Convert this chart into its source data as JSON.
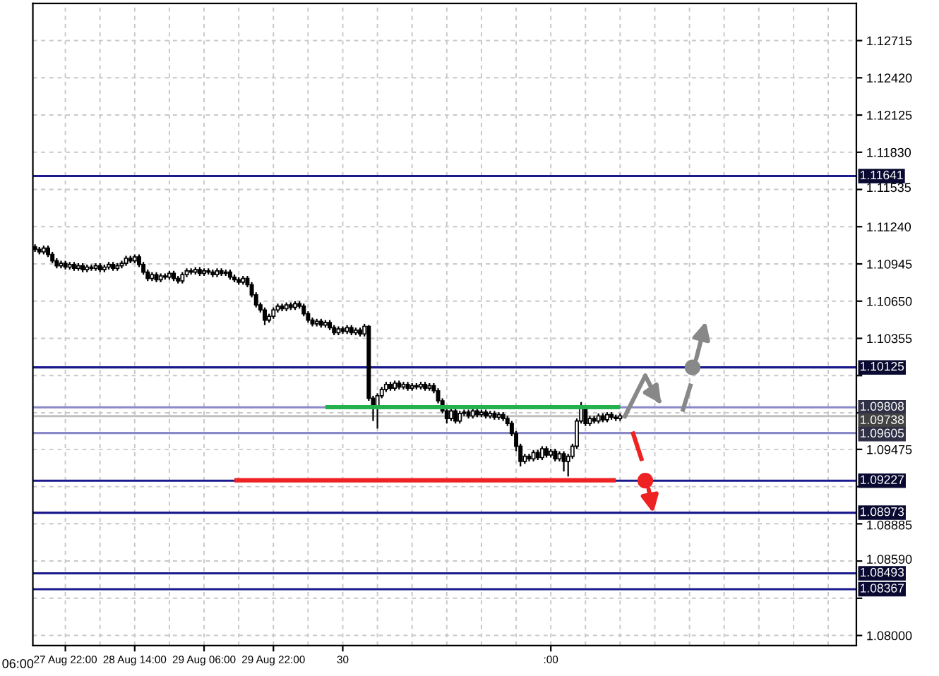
{
  "chart_data": {
    "type": "candlestick",
    "color": "#000000",
    "categories": [
      null,
      null,
      null,
      null,
      null,
      null,
      null,
      "27 Aug 22:00",
      null,
      null,
      null,
      null,
      null,
      null,
      null,
      null,
      null,
      null,
      null,
      null,
      null,
      null,
      null,
      "28 Aug 14:00",
      null,
      null,
      null,
      null,
      null,
      null,
      null,
      null,
      null,
      null,
      null,
      null,
      null,
      null,
      null,
      "29 Aug 06:00",
      null,
      null,
      null,
      null,
      null,
      null,
      null,
      null,
      null,
      null,
      null,
      null,
      null,
      null,
      null,
      "29 Aug 22:00",
      null,
      null,
      null,
      null,
      null,
      null,
      null,
      null,
      null,
      null,
      null,
      null,
      null,
      null,
      null,
      "30",
      null,
      null,
      null,
      null,
      null,
      null,
      null,
      null,
      null,
      null,
      null,
      null,
      null,
      null,
      null,
      null,
      null,
      null,
      null,
      null,
      null,
      null,
      null,
      null,
      null,
      null,
      null,
      null,
      null,
      null,
      null,
      null,
      null,
      null,
      null,
      null,
      null,
      null,
      null,
      null,
      null,
      null,
      null,
      null,
      null,
      null,
      null,
      ":00",
      null,
      null,
      null,
      null,
      null,
      null,
      null,
      null,
      null,
      null,
      null,
      null,
      null,
      null,
      null,
      null,
      null,
      null,
      null,
      null,
      null,
      null,
      null,
      null,
      null,
      null,
      null,
      null,
      null,
      null,
      null,
      null,
      null,
      null,
      null,
      null,
      null,
      null,
      null,
      null,
      null,
      null,
      null,
      null,
      null,
      null,
      null,
      null,
      null,
      null,
      null,
      null,
      null,
      null,
      null,
      null,
      null,
      null,
      null,
      null,
      null,
      null,
      null,
      null,
      null,
      null,
      null,
      null,
      null,
      null
    ],
    "ohlc": [
      [
        1.1108,
        1.111,
        1.1104,
        1.1106
      ],
      [
        1.1106,
        1.1108,
        1.1102,
        1.1104
      ],
      [
        1.1104,
        1.1109,
        1.1102,
        1.1107
      ],
      [
        1.1107,
        1.1109,
        1.11,
        1.1102
      ],
      [
        1.1102,
        1.1104,
        1.1095,
        1.1097
      ],
      [
        1.1097,
        1.1099,
        1.1091,
        1.1093
      ],
      [
        1.1093,
        1.1097,
        1.1091,
        1.1095
      ],
      [
        1.1095,
        1.1097,
        1.109,
        1.1092
      ],
      [
        1.1092,
        1.1096,
        1.109,
        1.1094
      ],
      [
        1.1094,
        1.1096,
        1.1089,
        1.1091
      ],
      [
        1.1091,
        1.1095,
        1.1089,
        1.1093
      ],
      [
        1.1093,
        1.1095,
        1.1088,
        1.109
      ],
      [
        1.109,
        1.1094,
        1.1088,
        1.1092
      ],
      [
        1.1092,
        1.1094,
        1.1089,
        1.1091
      ],
      [
        1.1091,
        1.1095,
        1.1089,
        1.1093
      ],
      [
        1.1093,
        1.1095,
        1.1088,
        1.109
      ],
      [
        1.109,
        1.1094,
        1.1088,
        1.1092
      ],
      [
        1.1092,
        1.1096,
        1.109,
        1.1094
      ],
      [
        1.1094,
        1.1096,
        1.1089,
        1.1091
      ],
      [
        1.1091,
        1.1095,
        1.1089,
        1.1093
      ],
      [
        1.1093,
        1.1097,
        1.1091,
        1.1095
      ],
      [
        1.1095,
        1.1101,
        1.1093,
        1.1099
      ],
      [
        1.1099,
        1.1101,
        1.1095,
        1.1097
      ],
      [
        1.1097,
        1.1102,
        1.1095,
        1.11
      ],
      [
        1.11,
        1.1102,
        1.1092,
        1.1094
      ],
      [
        1.1094,
        1.1096,
        1.1086,
        1.1088
      ],
      [
        1.1088,
        1.109,
        1.1081,
        1.1083
      ],
      [
        1.1083,
        1.1088,
        1.1081,
        1.1086
      ],
      [
        1.1086,
        1.1088,
        1.108,
        1.1082
      ],
      [
        1.1082,
        1.1087,
        1.108,
        1.1085
      ],
      [
        1.1085,
        1.1087,
        1.1082,
        1.1084
      ],
      [
        1.1084,
        1.1089,
        1.1082,
        1.1087
      ],
      [
        1.1087,
        1.1089,
        1.1081,
        1.1083
      ],
      [
        1.1083,
        1.1085,
        1.1079,
        1.1081
      ],
      [
        1.1081,
        1.1088,
        1.1079,
        1.1086
      ],
      [
        1.1086,
        1.1091,
        1.1084,
        1.1089
      ],
      [
        1.1089,
        1.1091,
        1.1086,
        1.1088
      ],
      [
        1.1088,
        1.1092,
        1.1086,
        1.109
      ],
      [
        1.109,
        1.1092,
        1.1085,
        1.1087
      ],
      [
        1.1087,
        1.1091,
        1.1085,
        1.1089
      ],
      [
        1.1089,
        1.1091,
        1.1086,
        1.1088
      ],
      [
        1.1088,
        1.109,
        1.1084,
        1.1086
      ],
      [
        1.1086,
        1.1091,
        1.1084,
        1.1089
      ],
      [
        1.1089,
        1.1091,
        1.1085,
        1.1087
      ],
      [
        1.1087,
        1.109,
        1.1085,
        1.1088
      ],
      [
        1.1088,
        1.109,
        1.1082,
        1.1084
      ],
      [
        1.1084,
        1.1086,
        1.108,
        1.1082
      ],
      [
        1.1082,
        1.1084,
        1.1078,
        1.108
      ],
      [
        1.108,
        1.1085,
        1.1078,
        1.1083
      ],
      [
        1.1083,
        1.1085,
        1.1076,
        1.1078
      ],
      [
        1.1078,
        1.108,
        1.1068,
        1.107
      ],
      [
        1.107,
        1.1072,
        1.106,
        1.1062
      ],
      [
        1.1062,
        1.1064,
        1.1056,
        1.1058
      ],
      [
        1.1058,
        1.106,
        1.1046,
        1.105
      ],
      [
        1.105,
        1.1055,
        1.1048,
        1.1053
      ],
      [
        1.1053,
        1.106,
        1.1051,
        1.1058
      ],
      [
        1.1058,
        1.1063,
        1.1056,
        1.1061
      ],
      [
        1.1061,
        1.1063,
        1.1057,
        1.1059
      ],
      [
        1.1059,
        1.1064,
        1.1057,
        1.1062
      ],
      [
        1.1062,
        1.1064,
        1.1058,
        1.106
      ],
      [
        1.106,
        1.1065,
        1.1058,
        1.1063
      ],
      [
        1.1063,
        1.1065,
        1.1059,
        1.1061
      ],
      [
        1.1061,
        1.1063,
        1.1053,
        1.1055
      ],
      [
        1.1055,
        1.1057,
        1.1048,
        1.105
      ],
      [
        1.105,
        1.1052,
        1.1045,
        1.1047
      ],
      [
        1.1047,
        1.1051,
        1.1045,
        1.1049
      ],
      [
        1.1049,
        1.1051,
        1.1044,
        1.1046
      ],
      [
        1.1046,
        1.105,
        1.1044,
        1.1048
      ],
      [
        1.1048,
        1.105,
        1.1042,
        1.1044
      ],
      [
        1.1044,
        1.1046,
        1.1038,
        1.104
      ],
      [
        1.104,
        1.1045,
        1.1038,
        1.1043
      ],
      [
        1.1043,
        1.1045,
        1.1039,
        1.1041
      ],
      [
        1.1041,
        1.1046,
        1.1039,
        1.1044
      ],
      [
        1.1044,
        1.1046,
        1.1038,
        1.104
      ],
      [
        1.104,
        1.1044,
        1.1038,
        1.1042
      ],
      [
        1.1042,
        1.1044,
        1.1037,
        1.1039
      ],
      [
        1.1039,
        1.1047,
        1.1037,
        1.1045
      ],
      [
        1.1045,
        1.1046,
        1.0986,
        1.0988
      ],
      [
        1.0988,
        1.099,
        1.097,
        1.0982
      ],
      [
        1.0982,
        1.0992,
        1.0964,
        1.099
      ],
      [
        1.099,
        1.0997,
        1.0988,
        1.0995
      ],
      [
        1.0995,
        1.1001,
        1.0993,
        1.0999
      ],
      [
        1.0999,
        1.1001,
        1.0994,
        1.0996
      ],
      [
        1.0996,
        1.1002,
        1.0994,
        1.1
      ],
      [
        1.1,
        1.1002,
        1.0995,
        1.0997
      ],
      [
        1.0997,
        1.1001,
        1.0995,
        1.0999
      ],
      [
        1.0999,
        1.1001,
        1.0994,
        1.0996
      ],
      [
        1.0996,
        1.1,
        1.0994,
        1.0998
      ],
      [
        1.0998,
        1.1,
        1.0995,
        1.0997
      ],
      [
        1.0997,
        1.1001,
        1.0995,
        1.0999
      ],
      [
        1.0999,
        1.1001,
        1.0994,
        1.0996
      ],
      [
        1.0996,
        1.1,
        1.0994,
        1.0998
      ],
      [
        1.0998,
        1.1,
        1.0992,
        1.0994
      ],
      [
        1.0994,
        1.0996,
        1.0984,
        1.0986
      ],
      [
        1.0986,
        1.0988,
        1.0976,
        1.0978
      ],
      [
        1.0978,
        1.098,
        1.0968,
        1.0972
      ],
      [
        1.0972,
        1.098,
        1.097,
        1.0978
      ],
      [
        1.0978,
        1.098,
        1.0968,
        1.097
      ],
      [
        1.097,
        1.0978,
        1.0968,
        1.0976
      ],
      [
        1.0976,
        1.0979,
        1.0974,
        1.0977
      ],
      [
        1.0977,
        1.0979,
        1.0972,
        1.0974
      ],
      [
        1.0974,
        1.098,
        1.0972,
        1.0978
      ],
      [
        1.0978,
        1.098,
        1.0973,
        1.0975
      ],
      [
        1.0975,
        1.0979,
        1.0973,
        1.0977
      ],
      [
        1.0977,
        1.0979,
        1.0972,
        1.0974
      ],
      [
        1.0974,
        1.0978,
        1.0972,
        1.0976
      ],
      [
        1.0976,
        1.0978,
        1.0971,
        1.0973
      ],
      [
        1.0973,
        1.0977,
        1.0971,
        1.0975
      ],
      [
        1.0975,
        1.0977,
        1.097,
        1.0972
      ],
      [
        1.0972,
        1.0974,
        1.0966,
        1.0968
      ],
      [
        1.0968,
        1.097,
        1.0958,
        1.096
      ],
      [
        1.096,
        1.0962,
        1.0946,
        1.095
      ],
      [
        1.095,
        1.0952,
        1.0934,
        1.0938
      ],
      [
        1.0938,
        1.0944,
        1.0936,
        1.0942
      ],
      [
        1.0942,
        1.0944,
        1.0938,
        1.094
      ],
      [
        1.094,
        1.0947,
        1.0938,
        1.0945
      ],
      [
        1.0945,
        1.0947,
        1.0939,
        1.0941
      ],
      [
        1.0941,
        1.095,
        1.0939,
        1.0948
      ],
      [
        1.0948,
        1.095,
        1.0941,
        1.0943
      ],
      [
        1.0943,
        1.0948,
        1.0941,
        1.0946
      ],
      [
        1.0946,
        1.0948,
        1.0938,
        1.094
      ],
      [
        1.094,
        1.0946,
        1.0938,
        1.0944
      ],
      [
        1.0944,
        1.0946,
        1.093,
        1.0938
      ],
      [
        1.0938,
        1.0944,
        1.0926,
        1.0942
      ],
      [
        1.0942,
        1.0952,
        1.094,
        1.095
      ],
      [
        1.095,
        1.0972,
        1.0948,
        1.097
      ],
      [
        1.097,
        1.0985,
        1.0968,
        1.098
      ],
      [
        1.098,
        1.0982,
        1.0966,
        1.0968
      ],
      [
        1.0968,
        1.0974,
        1.0966,
        1.0972
      ],
      [
        1.0972,
        1.0974,
        1.0968,
        1.097
      ],
      [
        1.097,
        1.0976,
        1.0968,
        1.0974
      ],
      [
        1.0974,
        1.0976,
        1.0969,
        1.0971
      ],
      [
        1.0971,
        1.0977,
        1.0969,
        1.0975
      ],
      [
        1.0975,
        1.0977,
        1.0971,
        1.0973
      ],
      [
        1.0973,
        1.0975,
        1.097,
        1.0972
      ],
      [
        1.0972,
        1.0976,
        1.097,
        1.0974
      ],
      null,
      null,
      null,
      null,
      null,
      null,
      null,
      null,
      null,
      null,
      null,
      null,
      null,
      null,
      null,
      null,
      null,
      null,
      null,
      null,
      null,
      null,
      null,
      null,
      null,
      null,
      null,
      null,
      null,
      null,
      null,
      null,
      null,
      null,
      null,
      null,
      null,
      null,
      null,
      null,
      null,
      null,
      null,
      null,
      null,
      null,
      null,
      null,
      null,
      null,
      null,
      null,
      null,
      null
    ],
    "series": [
      {
        "type": "line",
        "color": "#22b14c",
        "values": [
          null,
          null,
          null,
          null,
          null,
          null,
          null,
          null,
          null,
          null,
          null,
          null,
          null,
          null,
          null,
          null,
          null,
          null,
          null,
          null,
          null,
          null,
          null,
          null,
          null,
          null,
          null,
          null,
          null,
          null,
          null,
          null,
          null,
          null,
          null,
          null,
          null,
          null,
          null,
          null,
          null,
          null,
          null,
          null,
          null,
          null,
          null,
          null,
          null,
          null,
          null,
          null,
          null,
          null,
          null,
          null,
          null,
          null,
          null,
          null,
          null,
          null,
          null,
          null,
          null,
          null,
          null,
          1.0981,
          1.0981,
          1.0981,
          1.0981,
          1.0981,
          1.0981,
          1.0981,
          1.0981,
          1.0981,
          1.0981,
          1.0981,
          1.0981,
          1.0981,
          1.0981,
          1.0981,
          1.0981,
          1.0981,
          1.0981,
          1.0981,
          1.0981,
          1.0981,
          1.0981,
          1.0981,
          1.0981,
          1.0981,
          1.0981,
          1.0981,
          1.0981,
          1.0981,
          1.0981,
          1.0981,
          1.0981,
          1.0981,
          1.0981,
          1.0981,
          1.0981,
          1.0981,
          1.0981,
          1.0981,
          1.0981,
          1.0981,
          1.0981,
          1.0981,
          1.0981,
          1.0981,
          1.0981,
          1.0981,
          1.0981,
          1.0981,
          1.0981,
          1.0981,
          1.0981,
          1.0981,
          1.0981,
          1.0981,
          1.0981,
          1.0981,
          1.0981,
          1.0981,
          1.0981,
          1.0981,
          1.0981,
          1.0981,
          1.0981,
          1.0981,
          1.0981,
          1.0981,
          1.0981,
          1.0981,
          null,
          null,
          null,
          null,
          null,
          null,
          null,
          null,
          null,
          null,
          null,
          null,
          null,
          null,
          null,
          null,
          null,
          null,
          null,
          null,
          null,
          null,
          null,
          null,
          null,
          null,
          null,
          null,
          null,
          null,
          null,
          null,
          null,
          null,
          null,
          null,
          null,
          null,
          null,
          null,
          null,
          null,
          null,
          null,
          null,
          null,
          null,
          null,
          null,
          null,
          null,
          null,
          null,
          null
        ]
      },
      {
        "type": "line",
        "color": "#ee2222",
        "values": [
          null,
          null,
          null,
          null,
          null,
          null,
          null,
          null,
          null,
          null,
          null,
          null,
          null,
          null,
          null,
          null,
          null,
          null,
          null,
          null,
          null,
          null,
          null,
          null,
          null,
          null,
          null,
          null,
          null,
          null,
          null,
          null,
          null,
          null,
          null,
          null,
          null,
          null,
          null,
          null,
          null,
          null,
          null,
          null,
          null,
          null,
          1.0923,
          1.0923,
          1.0923,
          1.0923,
          1.0923,
          1.0923,
          1.0923,
          1.0923,
          1.0923,
          1.0923,
          1.0923,
          1.0923,
          1.0923,
          1.0923,
          1.0923,
          1.0923,
          1.0923,
          1.0923,
          1.0923,
          1.0923,
          1.0923,
          1.0923,
          1.0923,
          1.0923,
          1.0923,
          1.0923,
          1.0923,
          1.0923,
          1.0923,
          1.0923,
          1.0923,
          1.0923,
          1.0923,
          1.0923,
          1.0923,
          1.0923,
          1.0923,
          1.0923,
          1.0923,
          1.0923,
          1.0923,
          1.0923,
          1.0923,
          1.0923,
          1.0923,
          1.0923,
          1.0923,
          1.0923,
          1.0923,
          1.0923,
          1.0923,
          1.0923,
          1.0923,
          1.0923,
          1.0923,
          1.0923,
          1.0923,
          1.0923,
          1.0923,
          1.0923,
          1.0923,
          1.0923,
          1.0923,
          1.0923,
          1.0923,
          1.0923,
          1.0923,
          1.0923,
          1.0923,
          1.0923,
          1.0923,
          1.0923,
          1.0923,
          1.0923,
          1.0923,
          1.0923,
          1.0923,
          1.0923,
          1.0923,
          1.0923,
          1.0923,
          1.0923,
          1.0923,
          1.0923,
          1.0923,
          1.0923,
          1.0923,
          1.0923,
          1.0923,
          null,
          null,
          null,
          null,
          null,
          null,
          null,
          null,
          null,
          null,
          null,
          null,
          null,
          null,
          null,
          null,
          null,
          null,
          null,
          null,
          null,
          null,
          null,
          null,
          null,
          null,
          null,
          null,
          null,
          null,
          null,
          null,
          null,
          null,
          null,
          null,
          null,
          null,
          null,
          null,
          null,
          null,
          null,
          null,
          null,
          null,
          null,
          null,
          null,
          null,
          null,
          null,
          null,
          null,
          null
        ]
      }
    ],
    "ylim": [
      1.0792,
      1.1301
    ],
    "yticks": [
      1.12715,
      {
        "value": 1.1242,
        "label": "1.12420"
      },
      1.12125,
      {
        "value": 1.1183,
        "label": "1.11830"
      },
      1.11535,
      {
        "value": 1.1124,
        "label": "1.11240"
      },
      1.10945,
      {
        "value": 1.1065,
        "label": "1.10650"
      },
      1.10355,
      {
        "value": 1.1006,
        "label": null
      },
      {
        "value": 1.09765,
        "label": null
      },
      1.09475,
      {
        "value": 1.0918,
        "label": null
      },
      1.08885,
      {
        "value": 1.0859,
        "label": "1.08590"
      },
      {
        "value": 1.08295,
        "label": null
      },
      {
        "value": 1.08,
        "label": "1.08000"
      }
    ],
    "ref_lines": [
      {
        "axis": "y",
        "value": 1.11641,
        "label": "1.11641",
        "color": "#1a1a8c"
      },
      {
        "axis": "y",
        "value": 1.10125,
        "label": "1.10125",
        "color": "#1a1a8c"
      },
      {
        "axis": "y",
        "value": 1.09808,
        "label": "1.09808",
        "color": "#8a8ac8"
      },
      {
        "axis": "y",
        "value": 1.09738,
        "label": "1.09738",
        "color": "#c0c0c0"
      },
      {
        "axis": "y",
        "value": 1.09605,
        "label": "1.09605",
        "color": "#8a8ac8"
      },
      {
        "axis": "y",
        "value": 1.09227,
        "label": "1.09227",
        "color": "#1a1a8c"
      },
      {
        "axis": "y",
        "value": 1.08973,
        "label": "1.08973",
        "color": "#1a1a8c"
      },
      {
        "axis": "y",
        "value": 1.08493,
        "label": "1.08493",
        "color": "#1a1a8c"
      },
      {
        "axis": "y",
        "value": 1.08367,
        "label": "1.08367",
        "color": "#1a1a8c"
      }
    ],
    "annotations": [
      "06:00"
    ],
    "grid": true
  }
}
